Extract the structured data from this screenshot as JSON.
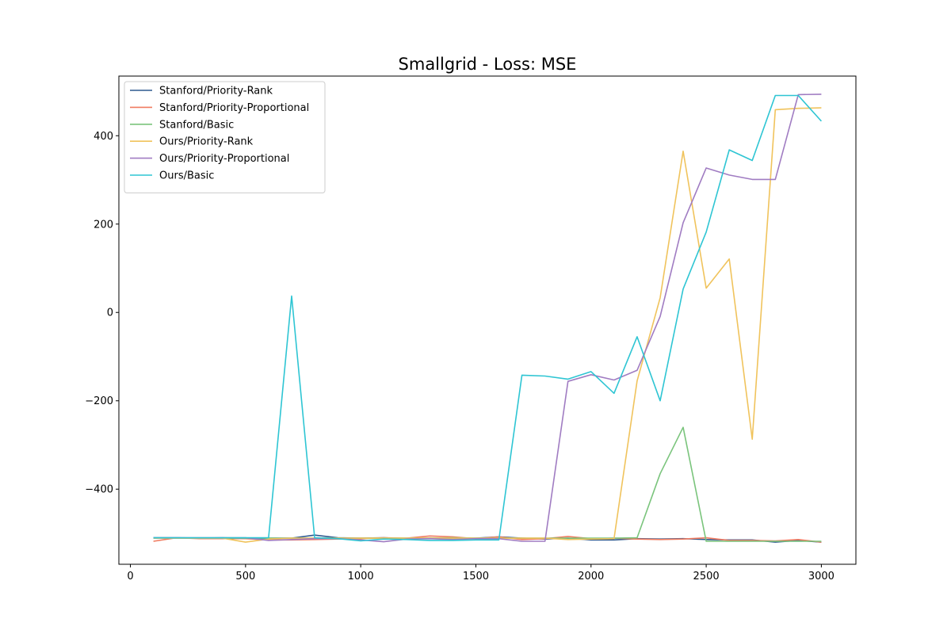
{
  "chart_data": {
    "type": "line",
    "title": "Smallgrid - Loss: MSE",
    "xlabel": "",
    "ylabel": "",
    "xlim": [
      -50,
      3150
    ],
    "ylim": [
      -570,
      535
    ],
    "xticks": [
      0,
      500,
      1000,
      1500,
      2000,
      2500,
      3000
    ],
    "yticks": [
      -400,
      -200,
      0,
      200,
      400
    ],
    "grid": false,
    "legend_position": "top-left",
    "x": [
      100,
      200,
      300,
      400,
      500,
      600,
      700,
      800,
      900,
      1000,
      1100,
      1200,
      1300,
      1400,
      1500,
      1600,
      1700,
      1800,
      1900,
      2000,
      2100,
      2200,
      2300,
      2400,
      2500,
      2600,
      2700,
      2800,
      2900,
      3000
    ],
    "series": [
      {
        "name": "Stanford/Priority-Rank",
        "color": "#2f5a8f",
        "values": [
          -510,
          -510,
          -511,
          -510,
          -512,
          -511,
          -511,
          -504,
          -510,
          -511,
          -510,
          -512,
          -511,
          -511,
          -511,
          -508,
          -511,
          -513,
          -511,
          -515,
          -515,
          -512,
          -513,
          -512,
          -514,
          -515,
          -515,
          -520,
          -516,
          -520
        ]
      },
      {
        "name": "Stanford/Priority-Proportional",
        "color": "#f07b60",
        "values": [
          -518,
          -510,
          -512,
          -512,
          -512,
          -515,
          -515,
          -514,
          -513,
          -512,
          -510,
          -511,
          -506,
          -508,
          -512,
          -508,
          -514,
          -512,
          -507,
          -512,
          -511,
          -513,
          -514,
          -513,
          -510,
          -516,
          -516,
          -517,
          -514,
          -520
        ]
      },
      {
        "name": "Stanford/Basic",
        "color": "#7ac47c",
        "values": [
          -511,
          -511,
          -511,
          -511,
          -511,
          -511,
          -511,
          -511,
          -511,
          -511,
          -511,
          -511,
          -511,
          -510,
          -511,
          -511,
          -511,
          -511,
          -511,
          -511,
          -511,
          -510,
          -365,
          -260,
          -518,
          -518,
          -518,
          -518,
          -518,
          -518
        ]
      },
      {
        "name": "Ours/Priority-Rank",
        "color": "#f0c35c",
        "values": [
          -511,
          -511,
          -511,
          -511,
          -520,
          -513,
          -511,
          -511,
          -511,
          -511,
          -511,
          -511,
          -511,
          -511,
          -511,
          -511,
          -511,
          -511,
          -514,
          -513,
          -512,
          -155,
          33,
          365,
          55,
          121,
          -287,
          459,
          462,
          463
        ]
      },
      {
        "name": "Ours/Priority-Proportional",
        "color": "#a07cc2",
        "values": [
          -510,
          -510,
          -510,
          -510,
          -510,
          -516,
          -514,
          -512,
          -512,
          -515,
          -519,
          -513,
          -512,
          -514,
          -512,
          -512,
          -518,
          -518,
          -156,
          -141,
          -153,
          -131,
          -9,
          203,
          327,
          311,
          301,
          301,
          493,
          494
        ]
      },
      {
        "name": "Ours/Basic",
        "color": "#2ec5d3",
        "values": [
          -510,
          -510,
          -510,
          -510,
          -510,
          -510,
          37,
          -510,
          -512,
          -517,
          -513,
          -514,
          -516,
          -516,
          -515,
          -515,
          -142,
          -144,
          -151,
          -134,
          -183,
          -55,
          -200,
          53,
          182,
          368,
          344,
          491,
          491,
          433
        ]
      }
    ]
  }
}
